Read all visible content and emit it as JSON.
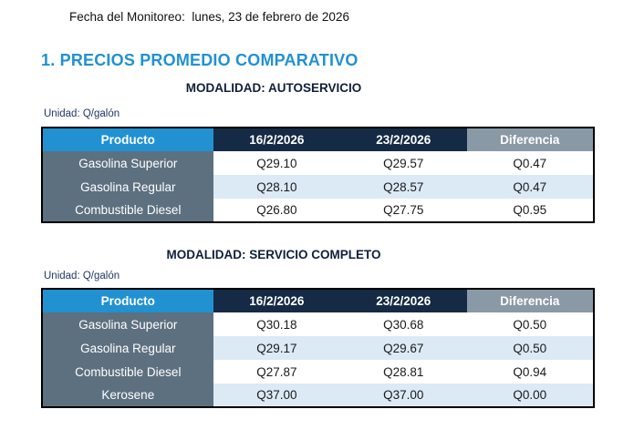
{
  "document": {
    "date_line": "Fecha del Monitoreo:  lunes, 23 de febrero de 2026",
    "section_title": "1. PRECIOS PROMEDIO COMPARATIVO"
  },
  "colors": {
    "accent_blue": "#2191D2",
    "header_navy": "#152A44",
    "header_gray": "#8A99A6",
    "product_column_gray": "#5D707F",
    "alt_row_blue": "#DBEAF5"
  },
  "tables": [
    {
      "modality": "MODALIDAD: AUTOSERVICIO",
      "unit": "Unidad: Q/galón",
      "columns": [
        "Producto",
        "16/2/2026",
        "23/2/2026",
        "Diferencia"
      ],
      "rows": [
        {
          "product": "Gasolina Superior",
          "prev": "Q29.10",
          "curr": "Q29.57",
          "diff": "Q0.47"
        },
        {
          "product": "Gasolina Regular",
          "prev": "Q28.10",
          "curr": "Q28.57",
          "diff": "Q0.47"
        },
        {
          "product": "Combustible Diesel",
          "prev": "Q26.80",
          "curr": "Q27.75",
          "diff": "Q0.95"
        }
      ]
    },
    {
      "modality": "MODALIDAD: SERVICIO COMPLETO",
      "unit": "Unidad: Q/galón",
      "columns": [
        "Producto",
        "16/2/2026",
        "23/2/2026",
        "Diferencia"
      ],
      "rows": [
        {
          "product": "Gasolina Superior",
          "prev": "Q30.18",
          "curr": "Q30.68",
          "diff": "Q0.50"
        },
        {
          "product": "Gasolina Regular",
          "prev": "Q29.17",
          "curr": "Q29.67",
          "diff": "Q0.50"
        },
        {
          "product": "Combustible Diesel",
          "prev": "Q27.87",
          "curr": "Q28.81",
          "diff": "Q0.94"
        },
        {
          "product": "Kerosene",
          "prev": "Q37.00",
          "curr": "Q37.00",
          "diff": "Q0.00"
        }
      ]
    }
  ]
}
